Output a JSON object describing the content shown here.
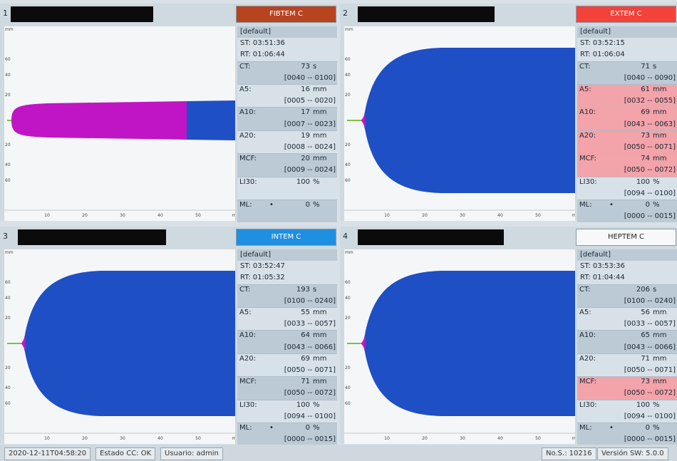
{
  "graph_axis": {
    "x_ticks": [
      "10",
      "20",
      "30",
      "40",
      "50",
      "min"
    ],
    "y_ticks": [
      "mm",
      "60",
      "40",
      "20",
      "20",
      "40",
      "60"
    ]
  },
  "panels": [
    {
      "number": "1",
      "test": "FIBTEM C",
      "header_color": "#b8431f",
      "default": "[default]",
      "st": "ST: 03:51:36",
      "rt": "RT: 01:06:44",
      "params": [
        {
          "label": "CT:",
          "value": "73",
          "unit": "s",
          "range": "[0040 -- 0100]"
        },
        {
          "label": "A5:",
          "value": "16",
          "unit": "mm",
          "range": "[0005 -- 0020]"
        },
        {
          "label": "A10:",
          "value": "17",
          "unit": "mm",
          "range": "[0007 -- 0023]"
        },
        {
          "label": "A20:",
          "value": "19",
          "unit": "mm",
          "range": "[0008 -- 0024]"
        },
        {
          "label": "MCF:",
          "value": "20",
          "unit": "mm",
          "range": "[0009 -- 0024]"
        },
        {
          "label": "LI30:",
          "value": "100",
          "unit": "%"
        },
        {
          "label": "ML:",
          "flag": "•",
          "value": "0",
          "unit": "%"
        }
      ]
    },
    {
      "number": "2",
      "test": "EXTEM C",
      "header_color": "#f2423a",
      "default": "[default]",
      "st": "ST: 03:52:15",
      "rt": "RT: 01:06:04",
      "params": [
        {
          "label": "CT:",
          "value": "71",
          "unit": "s",
          "range": "[0040 -- 0090]"
        },
        {
          "label": "A5:",
          "value": "61",
          "unit": "mm",
          "range": "[0032 -- 0055]",
          "abnormal": true
        },
        {
          "label": "A10:",
          "value": "69",
          "unit": "mm",
          "range": "[0043 -- 0063]",
          "abnormal": true
        },
        {
          "label": "A20:",
          "value": "73",
          "unit": "mm",
          "range": "[0050 -- 0071]",
          "abnormal": true
        },
        {
          "label": "MCF:",
          "value": "74",
          "unit": "mm",
          "range": "[0050 -- 0072]",
          "abnormal": true
        },
        {
          "label": "LI30:",
          "value": "100",
          "unit": "%",
          "range": "[0094 -- 0100]"
        },
        {
          "label": "ML:",
          "flag": "•",
          "value": "0",
          "unit": "%",
          "range": "[0000 -- 0015]"
        }
      ]
    },
    {
      "number": "3",
      "test": "INTEM C",
      "header_color": "#1f8fe2",
      "default": "[default]",
      "st": "ST: 03:52:47",
      "rt": "RT: 01:05:32",
      "params": [
        {
          "label": "CT:",
          "value": "193",
          "unit": "s",
          "range": "[0100 -- 0240]"
        },
        {
          "label": "A5:",
          "value": "55",
          "unit": "mm",
          "range": "[0033 -- 0057]"
        },
        {
          "label": "A10:",
          "value": "64",
          "unit": "mm",
          "range": "[0043 -- 0066]"
        },
        {
          "label": "A20:",
          "value": "69",
          "unit": "mm",
          "range": "[0050 -- 0071]"
        },
        {
          "label": "MCF:",
          "value": "71",
          "unit": "mm",
          "range": "[0050 -- 0072]"
        },
        {
          "label": "LI30:",
          "value": "100",
          "unit": "%",
          "range": "[0094 -- 0100]"
        },
        {
          "label": "ML:",
          "flag": "•",
          "value": "0",
          "unit": "%",
          "range": "[0000 -- 0015]"
        }
      ]
    },
    {
      "number": "4",
      "test": "HEPTEM C",
      "header_color": "#f7f8f9",
      "default": "[default]",
      "st": "ST: 03:53:36",
      "rt": "RT: 01:04:44",
      "params": [
        {
          "label": "CT:",
          "value": "206",
          "unit": "s",
          "range": "[0100 -- 0240]"
        },
        {
          "label": "A5:",
          "value": "56",
          "unit": "mm",
          "range": "[0033 -- 0057]"
        },
        {
          "label": "A10:",
          "value": "65",
          "unit": "mm",
          "range": "[0043 -- 0066]"
        },
        {
          "label": "A20:",
          "value": "71",
          "unit": "mm",
          "range": "[0050 -- 0071]"
        },
        {
          "label": "MCF:",
          "value": "73",
          "unit": "mm",
          "range": "[0050 -- 0072]",
          "abnormal": true
        },
        {
          "label": "LI30:",
          "value": "100",
          "unit": "%",
          "range": "[0094 -- 0100]"
        },
        {
          "label": "ML:",
          "flag": "•",
          "value": "0",
          "unit": "%",
          "range": "[0000 -- 0015]"
        }
      ]
    }
  ],
  "status_bar": {
    "timestamp": "2020-12-11T04:58:20",
    "qc": "Estado CC: OK",
    "user": "Usuario: admin",
    "sample": "No.S.: 10216",
    "version": "Versión SW: 5.0.0"
  }
}
